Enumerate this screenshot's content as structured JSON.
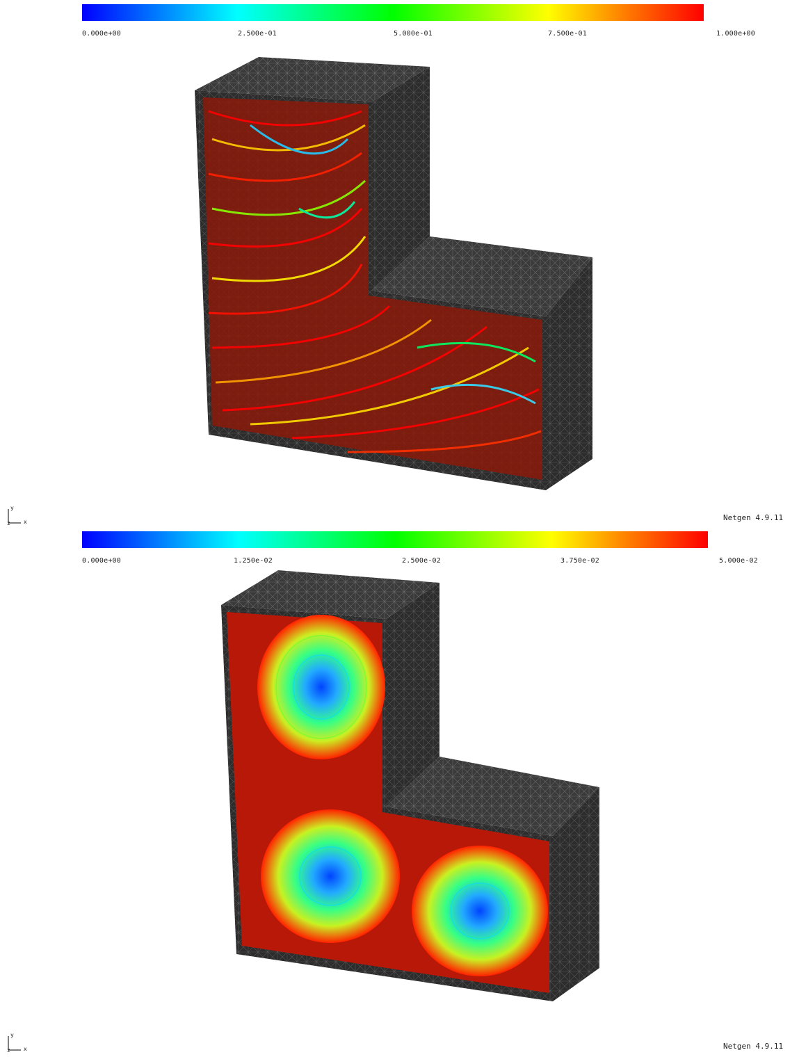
{
  "panels": [
    {
      "colorbar": {
        "min_label": "0.000e+00",
        "t1_label": "2.500e-01",
        "mid_label": "5.000e-01",
        "t3_label": "7.500e-01",
        "max_label": "1.000e+00",
        "colors": [
          "#0000ff",
          "#00ffff",
          "#00ff00",
          "#ffff00",
          "#ff0000"
        ]
      },
      "visualization": "streamlines-velocity-magnitude",
      "axes": {
        "x": "x",
        "y": "y",
        "z": "z"
      },
      "version": "Netgen 4.9.11"
    },
    {
      "colorbar": {
        "min_label": "0.000e+00",
        "t1_label": "1.250e-02",
        "mid_label": "2.500e-02",
        "t3_label": "3.750e-02",
        "max_label": "5.000e-02",
        "colors": [
          "#0000ff",
          "#00ffff",
          "#00ff00",
          "#ffff00",
          "#ff0000"
        ]
      },
      "visualization": "streamlines-vortices",
      "axes": {
        "x": "x",
        "y": "y",
        "z": "z"
      },
      "version": "Netgen 4.9.11"
    }
  ]
}
